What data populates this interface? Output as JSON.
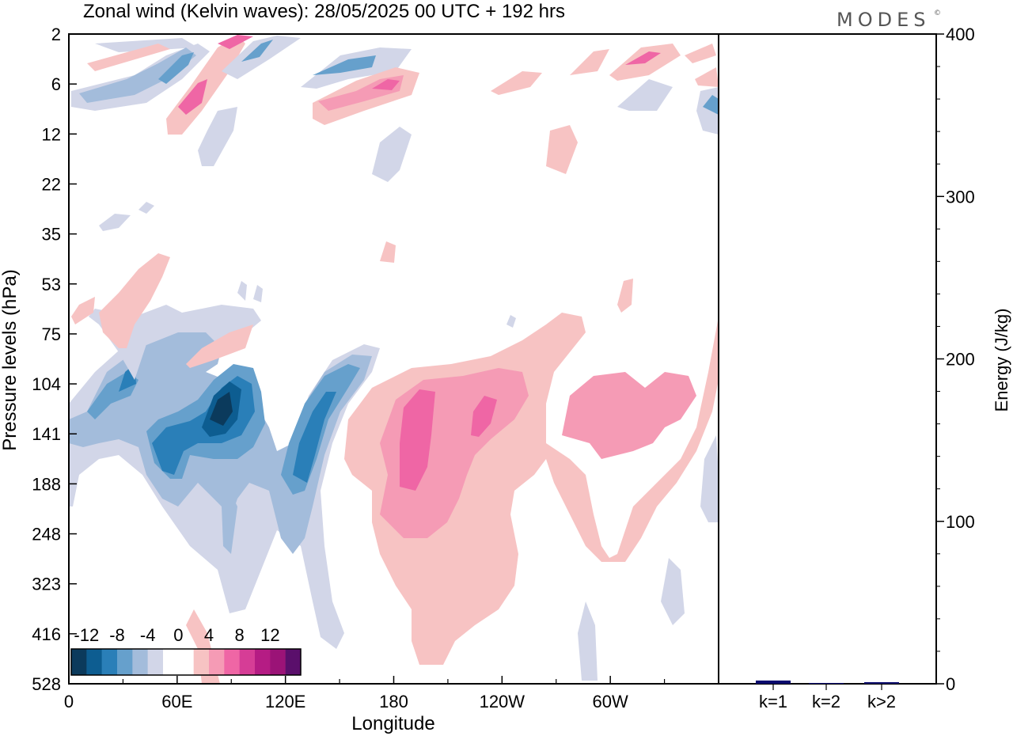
{
  "title": "Zonal wind (Kelvin waves):  28/05/2025  00 UTC  + 192 hrs",
  "logo": "MODES",
  "logo_mark": "©",
  "chart_data": [
    {
      "type": "heatmap",
      "xlabel": "Longitude",
      "ylabel": "Pressure levels (hPa)",
      "x_ticks": [
        "0",
        "60E",
        "120E",
        "180",
        "120W",
        "60W"
      ],
      "y_ticks": [
        "2",
        "6",
        "12",
        "22",
        "35",
        "53",
        "75",
        "104",
        "141",
        "188",
        "248",
        "323",
        "416",
        "528"
      ],
      "colorbar": {
        "labels": [
          "-12",
          "-8",
          "-4",
          "0",
          "4",
          "8",
          "12"
        ],
        "colors": [
          "#0b3a5c",
          "#0d5d91",
          "#2a7fb8",
          "#66a0cc",
          "#a3bcdb",
          "#d2d6e8",
          "#ffffff",
          "#ffffff",
          "#f7c3c3",
          "#f59bb5",
          "#ef66a5",
          "#d63d96",
          "#b51c84",
          "#9b1377",
          "#5a0f6b"
        ]
      },
      "regions": [
        {
          "sign": "positive",
          "level": 1,
          "lon": [
            230,
            300
          ],
          "hpa": [
            6,
            9
          ]
        },
        {
          "sign": "positive",
          "level": 3,
          "lon": [
            140,
            190
          ],
          "hpa": [
            5,
            9
          ]
        },
        {
          "sign": "negative",
          "level": 4,
          "lon": [
            60,
            110
          ],
          "hpa": [
            104,
            180
          ]
        },
        {
          "sign": "positive",
          "level": 3,
          "lon": [
            170,
            220
          ],
          "hpa": [
            110,
            300
          ]
        },
        {
          "sign": "positive",
          "level": 2,
          "lon": [
            250,
            300
          ],
          "hpa": [
            104,
            160
          ]
        }
      ]
    },
    {
      "type": "bar",
      "categories": [
        "k=1",
        "k=2",
        "k>2"
      ],
      "values": [
        2,
        0.5,
        1
      ],
      "ylabel": "Energy (J/kg)",
      "ylim": [
        0,
        400
      ],
      "y_ticks": [
        "0",
        "100",
        "200",
        "300",
        "400"
      ],
      "bar_color": "#0a0a6e"
    }
  ]
}
